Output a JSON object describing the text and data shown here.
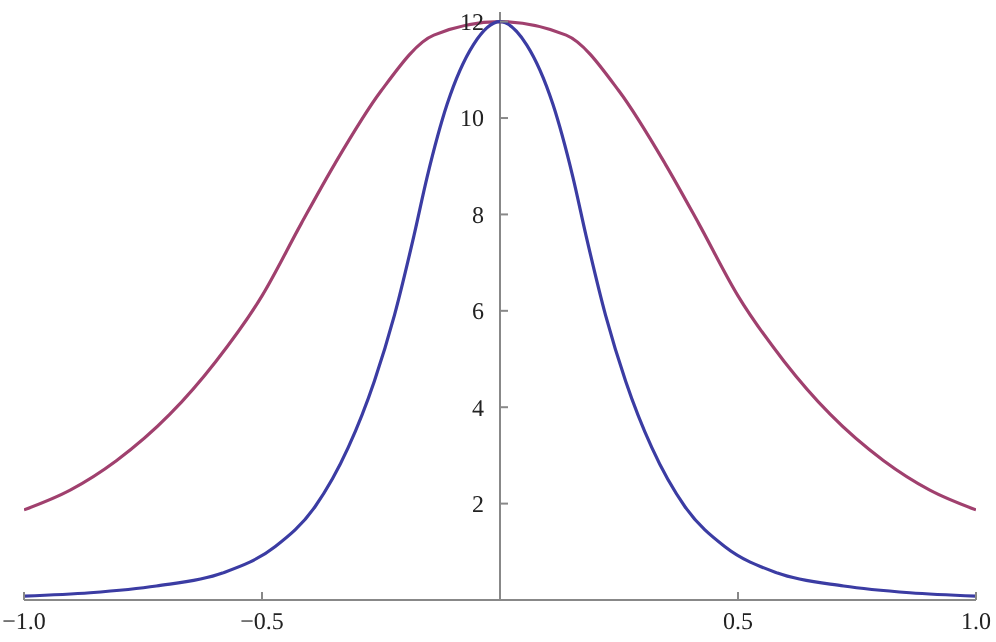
{
  "chart_data": {
    "type": "line",
    "x": [
      -1,
      -0.903,
      -0.806,
      -0.694,
      -0.597,
      -0.5,
      -0.417,
      -0.347,
      -0.25,
      -0.139,
      0,
      0.139,
      0.25,
      0.347,
      0.417,
      0.5,
      0.597,
      0.694,
      0.806,
      0.903,
      1
    ],
    "series": [
      {
        "color": "#a0406e",
        "values": [
          1.87,
          2.28,
          2.89,
          3.85,
          4.95,
          6.31,
          7.82,
          9.05,
          10.56,
          11.72,
          12,
          11.72,
          10.56,
          9.05,
          7.82,
          6.31,
          4.95,
          3.85,
          2.89,
          2.28,
          1.87
        ]
      },
      {
        "color": "#3b3ca3",
        "x": [
          -1,
          -0.861,
          -0.722,
          -0.583,
          -0.472,
          -0.389,
          -0.319,
          -0.264,
          -0.222,
          -0.181,
          -0.153,
          -0.111,
          -0.056,
          0,
          0.056,
          0.111,
          0.153,
          0.181,
          0.222,
          0.264,
          0.319,
          0.389,
          0.472,
          0.583,
          0.722,
          0.861,
          1
        ],
        "values": [
          0.08,
          0.15,
          0.29,
          0.56,
          1.11,
          1.93,
          3.16,
          4.54,
          5.9,
          7.55,
          8.78,
          10.29,
          11.52,
          12,
          11.52,
          10.29,
          8.78,
          7.55,
          5.9,
          4.54,
          3.16,
          1.93,
          1.11,
          0.56,
          0.29,
          0.15,
          0.08
        ]
      }
    ],
    "xlim": [
      -1,
      1
    ],
    "xticks": [
      {
        "value": -1,
        "label": "−1.0"
      },
      {
        "value": -0.5,
        "label": "−0.5"
      },
      {
        "value": 0.5,
        "label": "0.5"
      },
      {
        "value": 1,
        "label": "1.0"
      }
    ],
    "ylim": [
      0,
      12.2
    ],
    "yticks": [
      2,
      4,
      6,
      8,
      10,
      12
    ],
    "marker": "none",
    "line_style": "solid"
  }
}
